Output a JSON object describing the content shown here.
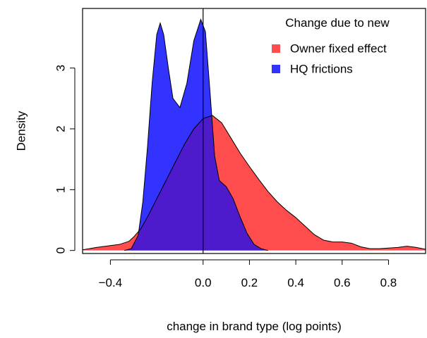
{
  "chart_data": {
    "type": "area",
    "title": "",
    "xlabel": "change in brand type (log points)",
    "ylabel": "Density",
    "xlim": [
      -0.52,
      0.96
    ],
    "ylim": [
      -0.05,
      3.98
    ],
    "x_ticks": [
      {
        "value": -0.4,
        "label": "−0.4"
      },
      {
        "value": 0.0,
        "label": "0.0"
      },
      {
        "value": 0.2,
        "label": "0.2"
      },
      {
        "value": 0.4,
        "label": "0.4"
      },
      {
        "value": 0.6,
        "label": "0.6"
      },
      {
        "value": 0.8,
        "label": "0.8"
      }
    ],
    "y_ticks": [
      {
        "value": 0,
        "label": "0"
      },
      {
        "value": 1,
        "label": "1"
      },
      {
        "value": 2,
        "label": "2"
      },
      {
        "value": 3,
        "label": "3"
      }
    ],
    "vline_x": 0.0,
    "legend": {
      "title": "Change due to new",
      "position": "top-right"
    },
    "series": [
      {
        "name": "Owner fixed effect",
        "color": "#FF4D4D",
        "points": [
          [
            -0.52,
            0.01
          ],
          [
            -0.46,
            0.05
          ],
          [
            -0.4,
            0.08
          ],
          [
            -0.36,
            0.1
          ],
          [
            -0.32,
            0.15
          ],
          [
            -0.3,
            0.22
          ],
          [
            -0.27,
            0.35
          ],
          [
            -0.24,
            0.55
          ],
          [
            -0.2,
            0.85
          ],
          [
            -0.16,
            1.15
          ],
          [
            -0.12,
            1.45
          ],
          [
            -0.08,
            1.75
          ],
          [
            -0.04,
            2.0
          ],
          [
            0.0,
            2.17
          ],
          [
            0.04,
            2.22
          ],
          [
            0.08,
            2.1
          ],
          [
            0.12,
            1.85
          ],
          [
            0.16,
            1.6
          ],
          [
            0.2,
            1.38
          ],
          [
            0.24,
            1.17
          ],
          [
            0.28,
            0.97
          ],
          [
            0.32,
            0.8
          ],
          [
            0.36,
            0.66
          ],
          [
            0.4,
            0.54
          ],
          [
            0.44,
            0.4
          ],
          [
            0.48,
            0.26
          ],
          [
            0.52,
            0.17
          ],
          [
            0.56,
            0.14
          ],
          [
            0.6,
            0.14
          ],
          [
            0.64,
            0.12
          ],
          [
            0.68,
            0.06
          ],
          [
            0.72,
            0.03
          ],
          [
            0.76,
            0.03
          ],
          [
            0.8,
            0.04
          ],
          [
            0.84,
            0.05
          ],
          [
            0.88,
            0.07
          ],
          [
            0.92,
            0.05
          ],
          [
            0.96,
            0.02
          ]
        ]
      },
      {
        "name": "HQ frictions",
        "color": "#3333FF",
        "points": [
          [
            -0.34,
            0.0
          ],
          [
            -0.31,
            0.03
          ],
          [
            -0.28,
            0.25
          ],
          [
            -0.26,
            0.8
          ],
          [
            -0.24,
            1.7
          ],
          [
            -0.22,
            2.75
          ],
          [
            -0.2,
            3.55
          ],
          [
            -0.185,
            3.74
          ],
          [
            -0.17,
            3.55
          ],
          [
            -0.15,
            3.0
          ],
          [
            -0.13,
            2.5
          ],
          [
            -0.1,
            2.35
          ],
          [
            -0.07,
            2.75
          ],
          [
            -0.04,
            3.45
          ],
          [
            -0.01,
            3.8
          ],
          [
            0.01,
            3.6
          ],
          [
            0.03,
            2.6
          ],
          [
            0.05,
            1.55
          ],
          [
            0.07,
            1.15
          ],
          [
            0.1,
            1.05
          ],
          [
            0.13,
            0.85
          ],
          [
            0.16,
            0.55
          ],
          [
            0.19,
            0.28
          ],
          [
            0.22,
            0.1
          ],
          [
            0.25,
            0.03
          ],
          [
            0.28,
            0.0
          ]
        ]
      }
    ]
  }
}
